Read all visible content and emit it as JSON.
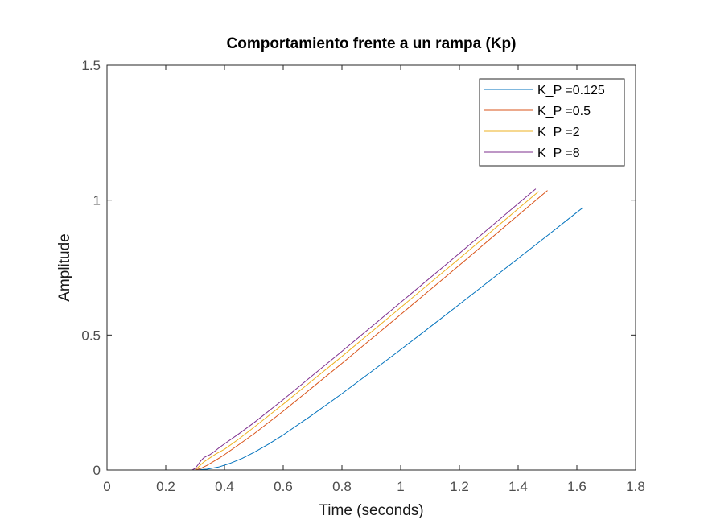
{
  "chart_data": {
    "type": "line",
    "title": "Comportamiento frente a un rampa (Kp)",
    "xlabel": "Time (seconds)",
    "ylabel": "Amplitude",
    "xlim": [
      0,
      1.8
    ],
    "ylim": [
      0,
      1.5
    ],
    "xticks": [
      0,
      0.2,
      0.4,
      0.6,
      0.8,
      1,
      1.2,
      1.4,
      1.6,
      1.8
    ],
    "xtick_labels": [
      "0",
      "0.2",
      "0.4",
      "0.6",
      "0.8",
      "1",
      "1.2",
      "1.4",
      "1.6",
      "1.8"
    ],
    "yticks": [
      0,
      0.5,
      1,
      1.5
    ],
    "ytick_labels": [
      "0",
      "0.5",
      "1",
      "1.5"
    ],
    "grid": false,
    "legend_position": "top-right",
    "series": [
      {
        "name": "K_P =0.125",
        "color": "#0072BD",
        "x": [
          0,
          0.3,
          0.34,
          0.38,
          0.42,
          0.46,
          0.5,
          0.55,
          0.6,
          0.7,
          0.8,
          0.9,
          1.0,
          1.1,
          1.2,
          1.3,
          1.4,
          1.5,
          1.6,
          1.62
        ],
        "y": [
          0,
          0,
          0.003,
          0.011,
          0.025,
          0.043,
          0.065,
          0.096,
          0.13,
          0.205,
          0.283,
          0.364,
          0.446,
          0.53,
          0.614,
          0.699,
          0.784,
          0.869,
          0.955,
          0.972
        ]
      },
      {
        "name": "K_P =0.5",
        "color": "#D95319",
        "x": [
          0,
          0.3,
          0.32,
          0.34,
          0.36,
          0.38,
          0.4,
          0.45,
          0.5,
          0.6,
          0.8,
          1.0,
          1.2,
          1.4,
          1.5
        ],
        "y": [
          0,
          0,
          0.006,
          0.017,
          0.03,
          0.043,
          0.057,
          0.095,
          0.134,
          0.218,
          0.395,
          0.576,
          0.759,
          0.944,
          1.036
        ]
      },
      {
        "name": "K_P =2",
        "color": "#EDB120",
        "x": [
          0,
          0.3,
          0.31,
          0.33,
          0.35,
          0.37,
          0.4,
          0.45,
          0.5,
          0.6,
          0.8,
          1.0,
          1.2,
          1.4,
          1.47
        ],
        "y": [
          0,
          0,
          0.01,
          0.03,
          0.045,
          0.059,
          0.077,
          0.116,
          0.158,
          0.244,
          0.421,
          0.602,
          0.784,
          0.968,
          1.032
        ]
      },
      {
        "name": "K_P =8",
        "color": "#7E2F8E",
        "x": [
          0,
          0.29,
          0.3,
          0.31,
          0.32,
          0.33,
          0.34,
          0.35,
          0.36,
          0.37,
          0.38,
          0.4,
          0.45,
          0.5,
          0.6,
          0.8,
          1.0,
          1.2,
          1.4,
          1.46
        ],
        "y": [
          0,
          0,
          0.006,
          0.02,
          0.035,
          0.046,
          0.052,
          0.057,
          0.064,
          0.072,
          0.081,
          0.097,
          0.135,
          0.175,
          0.261,
          0.44,
          0.621,
          0.803,
          0.987,
          1.042
        ]
      }
    ]
  }
}
